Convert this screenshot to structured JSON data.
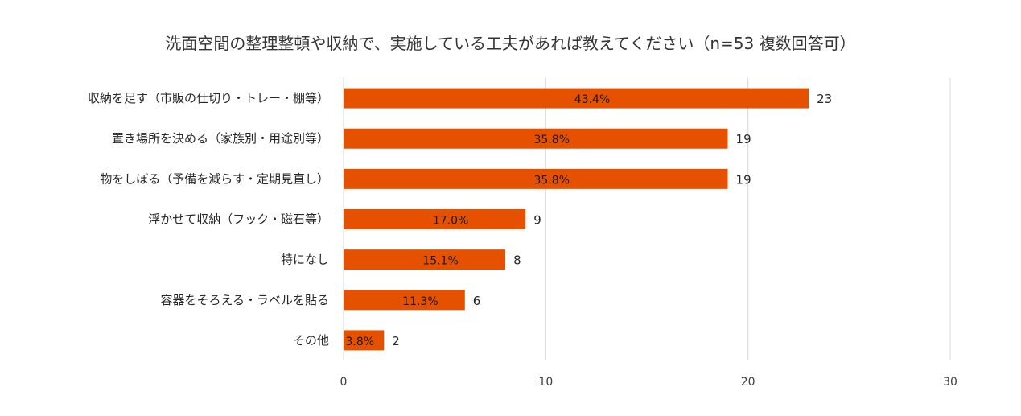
{
  "chart_data": {
    "type": "bar",
    "orientation": "horizontal",
    "title": "洗面空間の整理整頓や収納で、実施している工夫があれば教えてください（n=53 複数回答可）",
    "xlabel": "",
    "ylabel": "",
    "categories": [
      "収納を足す（市販の仕切り・トレー・棚等）",
      "置き場所を決める（家族別・用途別等）",
      "物をしぼる（予備を減らす・定期見直し）",
      "浮かせて収納（フック・磁石等）",
      "特になし",
      "容器をそろえる・ラベルを貼る",
      "その他"
    ],
    "values": [
      23,
      19,
      19,
      9,
      8,
      6,
      2
    ],
    "percent_labels": [
      "43.4%",
      "35.8%",
      "35.8%",
      "17.0%",
      "15.1%",
      "11.3%",
      "3.8%"
    ],
    "xlim": [
      0,
      30
    ],
    "x_ticks": [
      0,
      10,
      20,
      30
    ],
    "grid": true,
    "legend": "none",
    "bar_color": "#E65100",
    "grid_color": "#D9D9D9"
  }
}
